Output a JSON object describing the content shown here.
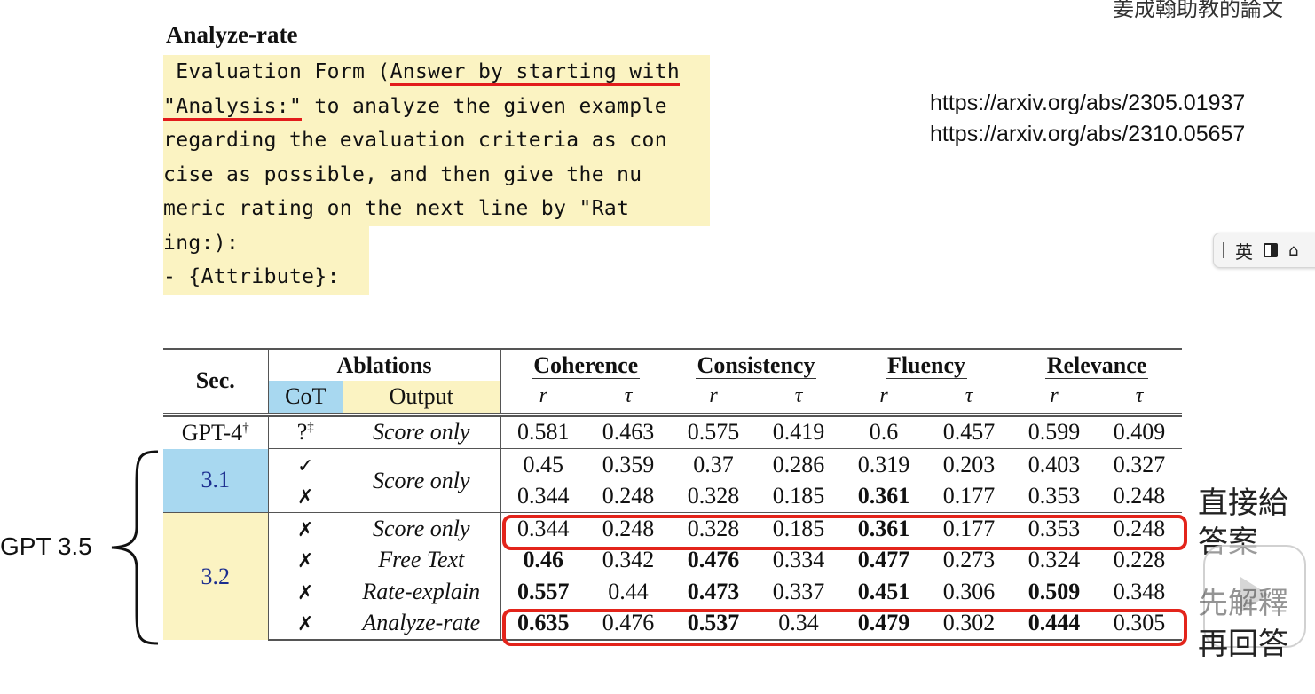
{
  "slide": {
    "title_partial": "姜成翰助教的論文",
    "links": [
      "https://arxiv.org/abs/2305.01937",
      "https://arxiv.org/abs/2310.05657"
    ]
  },
  "prompt": {
    "heading": "Analyze-rate",
    "lines": [
      " Evaluation Form (",
      "Answer by starting with",
      "\"Analysis:\"",
      " to analyze the given example",
      "regarding the evaluation criteria as con",
      "cise as possible, and then give the nu",
      "meric rating on the next line by \"Rat",
      "ing:):",
      "- {Attribute}:"
    ]
  },
  "ime": {
    "lang": "英"
  },
  "table": {
    "headers": {
      "sec": "Sec.",
      "ablations": "Ablations",
      "cot": "CoT",
      "output": "Output",
      "groups": [
        "Coherence",
        "Consistency",
        "Fluency",
        "Relevance"
      ],
      "r": "r",
      "tau": "τ"
    },
    "rows": [
      {
        "sec": "GPT-4",
        "sec_sup": "†",
        "cot": "?",
        "cot_sup": "‡",
        "output": "Score only",
        "values": [
          "0.581",
          "0.463",
          "0.575",
          "0.419",
          "0.6",
          "0.457",
          "0.599",
          "0.409"
        ],
        "bold": []
      },
      {
        "sec": "3.1",
        "cot": "✓",
        "output": "Score only",
        "values": [
          "0.45",
          "0.359",
          "0.37",
          "0.286",
          "0.319",
          "0.203",
          "0.403",
          "0.327"
        ],
        "bold": []
      },
      {
        "sec": "",
        "cot": "✗",
        "output": "",
        "values": [
          "0.344",
          "0.248",
          "0.328",
          "0.185",
          "0.361",
          "0.177",
          "0.353",
          "0.248"
        ],
        "bold": [
          4
        ]
      },
      {
        "sec": "3.2",
        "cot": "✗",
        "output": "Score only",
        "values": [
          "0.344",
          "0.248",
          "0.328",
          "0.185",
          "0.361",
          "0.177",
          "0.353",
          "0.248"
        ],
        "bold": [
          4
        ]
      },
      {
        "sec": "",
        "cot": "✗",
        "output": "Free Text",
        "values": [
          "0.46",
          "0.342",
          "0.476",
          "0.334",
          "0.477",
          "0.273",
          "0.324",
          "0.228"
        ],
        "bold": [
          0,
          2,
          4
        ]
      },
      {
        "sec": "",
        "cot": "✗",
        "output": "Rate-explain",
        "values": [
          "0.557",
          "0.44",
          "0.473",
          "0.337",
          "0.451",
          "0.306",
          "0.509",
          "0.348"
        ],
        "bold": [
          0,
          2,
          4,
          6
        ]
      },
      {
        "sec": "",
        "cot": "✗",
        "output": "Analyze-rate",
        "values": [
          "0.635",
          "0.476",
          "0.537",
          "0.34",
          "0.479",
          "0.302",
          "0.444",
          "0.305"
        ],
        "bold": [
          0,
          2,
          4,
          6
        ]
      }
    ]
  },
  "annotations": {
    "gpt_label": "GPT 3.5",
    "note_direct": [
      "直接給",
      "答案"
    ],
    "note_explain": [
      "先解釋",
      "再回答"
    ]
  },
  "colors": {
    "highlight_yellow": "#fbf3c2",
    "highlight_blue": "#a8d8f0",
    "red": "#e3241b",
    "sec_text": "#1b2d8f"
  }
}
